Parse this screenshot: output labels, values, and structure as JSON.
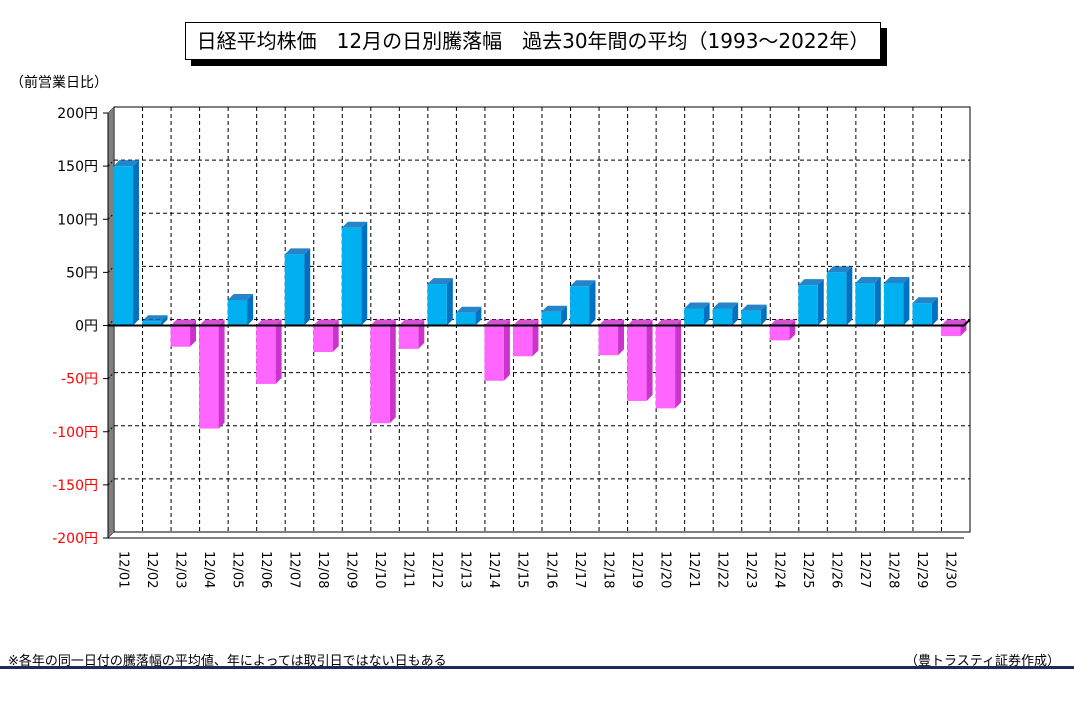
{
  "title": "日経平均株価　12月の日別騰落幅　過去30年間の平均（1993～2022年）",
  "unit_label": "（前営業日比）",
  "footnote": "※各年の同一日付の騰落幅の平均値、年によっては取引日ではない日もある",
  "credit": "（豊トラスティ証券作成）",
  "colors": {
    "positive_front": "#00b0f0",
    "positive_side": "#0070c0",
    "negative_front": "#ff66ff",
    "negative_side": "#cc33cc",
    "negative_label": "#ff0000"
  },
  "chart_data": {
    "type": "bar",
    "ylim": [
      -200,
      200
    ],
    "grid": true,
    "y_ticks": [
      "200円",
      "150円",
      "100円",
      "50円",
      "0円",
      "-50円",
      "-100円",
      "-150円",
      "-200円"
    ],
    "y_tick_values": [
      200,
      150,
      100,
      50,
      0,
      -50,
      -100,
      -150,
      -200
    ],
    "categories": [
      "12/01",
      "12/02",
      "12/03",
      "12/04",
      "12/05",
      "12/06",
      "12/07",
      "12/08",
      "12/09",
      "12/10",
      "12/11",
      "12/12",
      "12/13",
      "12/14",
      "12/15",
      "12/16",
      "12/17",
      "12/18",
      "12/19",
      "12/20",
      "12/21",
      "12/22",
      "12/23",
      "12/24",
      "12/25",
      "12/26",
      "12/27",
      "12/28",
      "12/29",
      "12/30"
    ],
    "values": [
      150,
      4,
      -20,
      -97,
      24,
      -55,
      67,
      -25,
      92,
      -92,
      -22,
      39,
      12,
      -52,
      -29,
      13,
      37,
      -28,
      -71,
      -78,
      16,
      16,
      14,
      -14,
      38,
      50,
      40,
      40,
      21,
      -10
    ]
  }
}
